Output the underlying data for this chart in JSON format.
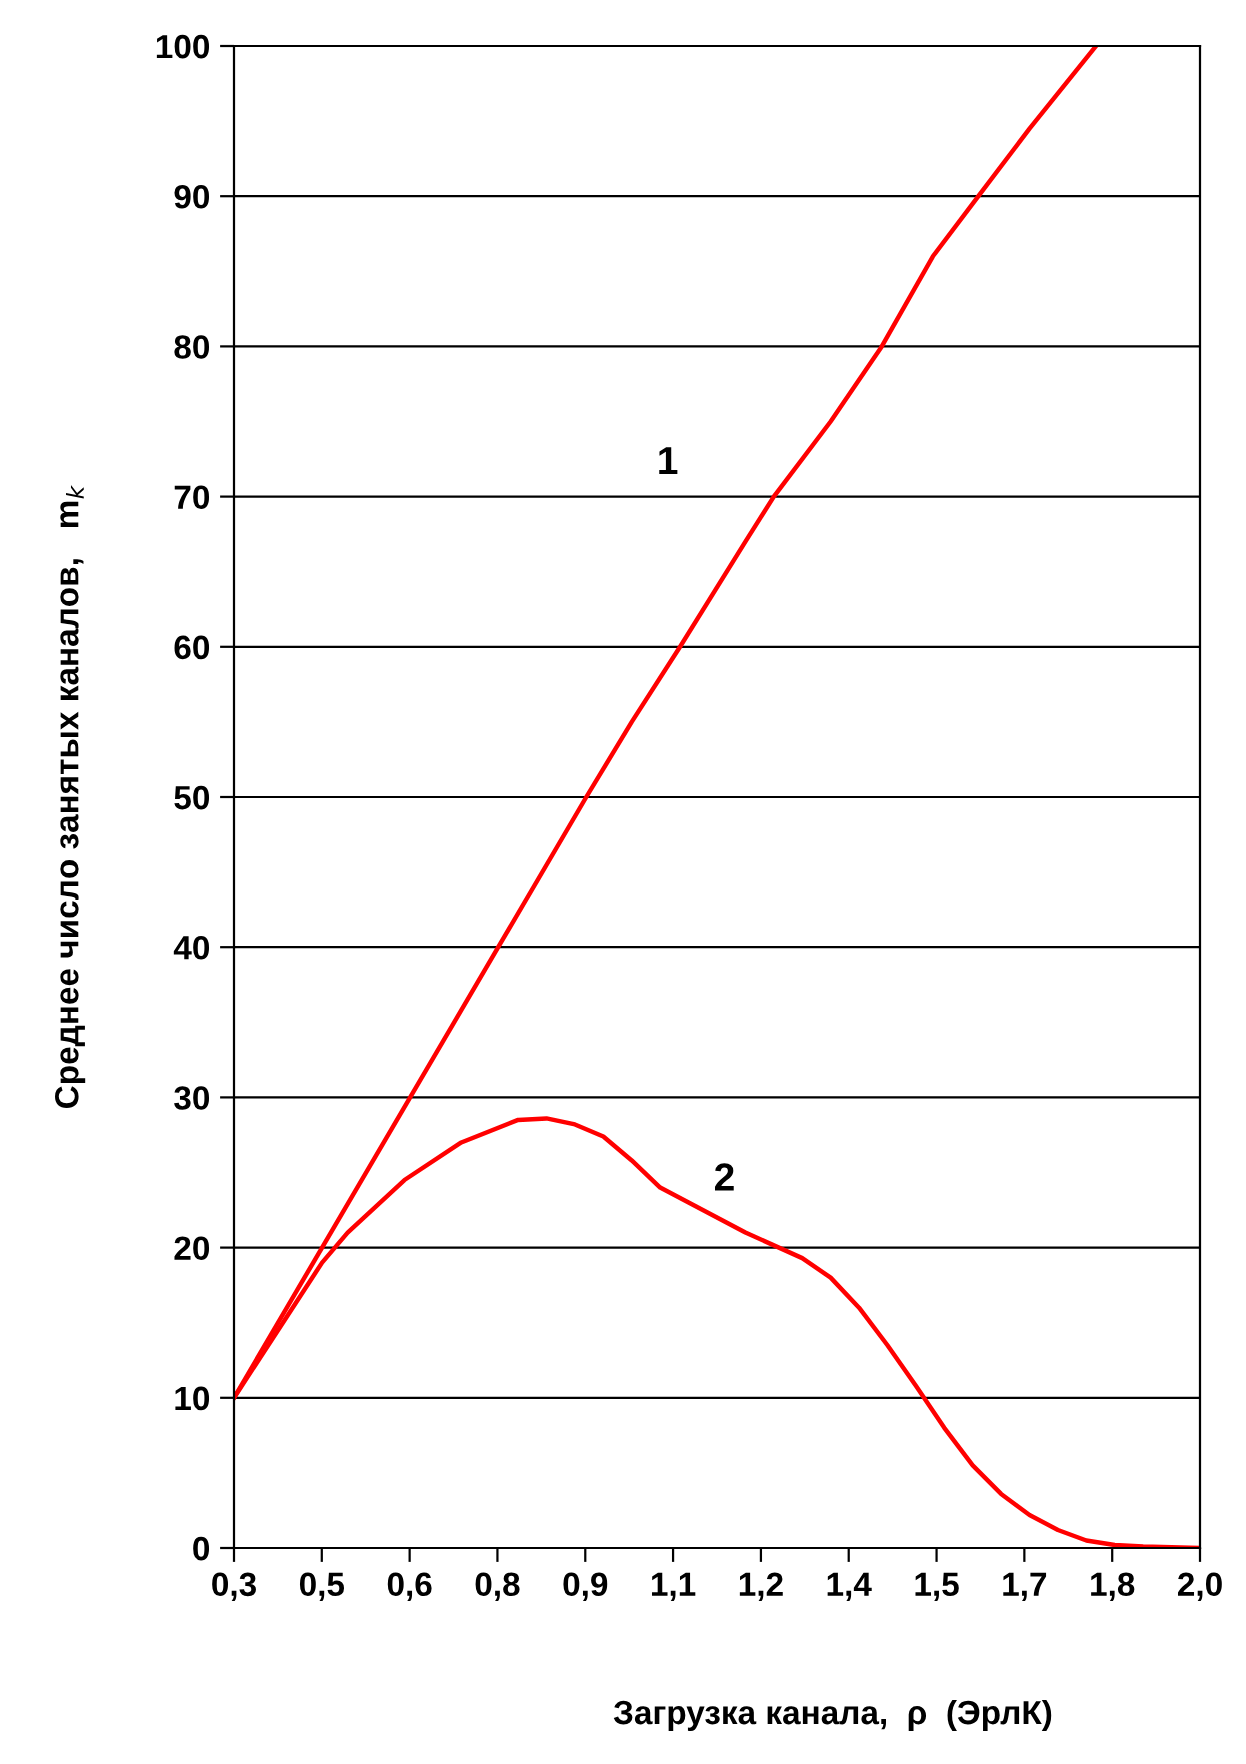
{
  "chart_data": {
    "type": "line",
    "xlabel": "Загрузка канала,  ρ  (ЭрлК)",
    "ylabel": "Среднее число занятых каналов,   m$_{k}$",
    "series": [
      {
        "name": "1",
        "color": "#ff0000",
        "x": [
          0.3,
          0.455,
          0.61,
          0.765,
          0.92,
          1.0,
          1.085,
          1.2,
          1.25,
          1.35,
          1.44,
          1.53,
          1.61,
          1.7,
          1.817
        ],
        "values": [
          10,
          20,
          30,
          40,
          50,
          55,
          60,
          67,
          70,
          75,
          80,
          86,
          90,
          94.5,
          100
        ]
      },
      {
        "name": "2",
        "color": "#ff0000",
        "x": [
          0.3,
          0.455,
          0.5,
          0.6,
          0.7,
          0.8,
          0.85,
          0.9,
          0.95,
          1.0,
          1.05,
          1.1,
          1.2,
          1.3,
          1.35,
          1.4,
          1.45,
          1.5,
          1.55,
          1.6,
          1.65,
          1.7,
          1.75,
          1.8,
          1.85,
          1.9,
          2.0
        ],
        "values": [
          10,
          19,
          21,
          24.5,
          27,
          28.5,
          28.6,
          28.2,
          27.4,
          25.8,
          24,
          23,
          21,
          19.3,
          18,
          16,
          13.5,
          10.8,
          8,
          5.5,
          3.6,
          2.2,
          1.2,
          0.5,
          0.2,
          0.1,
          0
        ]
      }
    ],
    "xlim": [
      0.3,
      2.0
    ],
    "xticks": [
      {
        "value": 0.3,
        "label": "0,3"
      },
      {
        "value": 0.4545,
        "label": "0,5"
      },
      {
        "value": 0.6091,
        "label": "0,6"
      },
      {
        "value": 0.7636,
        "label": "0,8"
      },
      {
        "value": 0.9182,
        "label": "0,9"
      },
      {
        "value": 1.0727,
        "label": "1,1"
      },
      {
        "value": 1.2273,
        "label": "1,2"
      },
      {
        "value": 1.3818,
        "label": "1,4"
      },
      {
        "value": 1.5364,
        "label": "1,5"
      },
      {
        "value": 1.6909,
        "label": "1,7"
      },
      {
        "value": 1.8455,
        "label": "1,8"
      },
      {
        "value": 2.0,
        "label": "2,0"
      }
    ],
    "ylim": [
      0,
      100
    ],
    "yticks": [
      0,
      10,
      20,
      30,
      40,
      50,
      60,
      70,
      80,
      90,
      100
    ],
    "grid": "y",
    "line_style": "solid",
    "marker": "none"
  }
}
